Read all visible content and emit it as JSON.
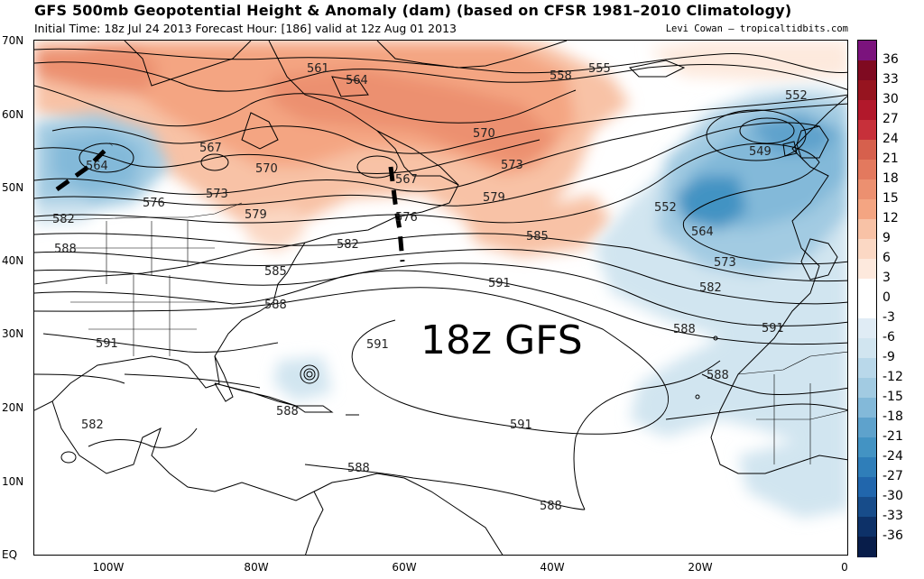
{
  "title": "GFS 500mb Geopotential Height & Anomaly (dam) (based on CFSR 1981–2010 Climatology)",
  "subtitle": "Initial Time: 18z Jul 24 2013 Forecast Hour: [186] valid at 12z Aug 01 2013",
  "credit": "Levi Cowan – tropicaltidbits.com",
  "overlay_label": "18z GFS",
  "latitude_labels": [
    "70N",
    "60N",
    "50N",
    "40N",
    "30N",
    "20N",
    "10N",
    "EQ"
  ],
  "longitude_labels": [
    "100W",
    "80W",
    "60W",
    "40W",
    "20W",
    "0"
  ],
  "colorbar": {
    "labels": [
      "36",
      "33",
      "30",
      "27",
      "24",
      "21",
      "18",
      "15",
      "12",
      "9",
      "6",
      "3",
      "0",
      "-3",
      "-6",
      "-9",
      "-12",
      "-15",
      "-18",
      "-21",
      "-24",
      "-27",
      "-30",
      "-33",
      "-36"
    ],
    "colors": [
      "#7b137d",
      "#7f0a21",
      "#96141f",
      "#b2182b",
      "#c7303a",
      "#d6604d",
      "#e3795e",
      "#ec9070",
      "#f4a582",
      "#f8c2a6",
      "#fbd8c4",
      "#fde9dd",
      "#ffffff",
      "#ffffff",
      "#e0ecf5",
      "#d1e5f0",
      "#b9d8ea",
      "#a2cbe2",
      "#83b9d9",
      "#5ea2cc",
      "#4393c3",
      "#2f7eb9",
      "#2166ac",
      "#174c8a",
      "#0d3168",
      "#081d4a"
    ]
  },
  "contour_labels": [
    "561",
    "564",
    "558",
    "555",
    "552",
    "549",
    "567",
    "570",
    "570",
    "573",
    "567",
    "564",
    "576",
    "573",
    "579",
    "576",
    "582",
    "579",
    "585",
    "582",
    "588",
    "585",
    "591",
    "591",
    "591",
    "588",
    "552",
    "564",
    "573",
    "582",
    "588",
    "591",
    "588",
    "588",
    "591",
    "588",
    "588",
    "582"
  ],
  "map": {
    "domain": "North Atlantic",
    "lat_range": [
      "0",
      "70N"
    ],
    "lon_range": [
      "110W",
      "0"
    ],
    "annotations": "black dashed trough axes near 105W and 60W"
  }
}
